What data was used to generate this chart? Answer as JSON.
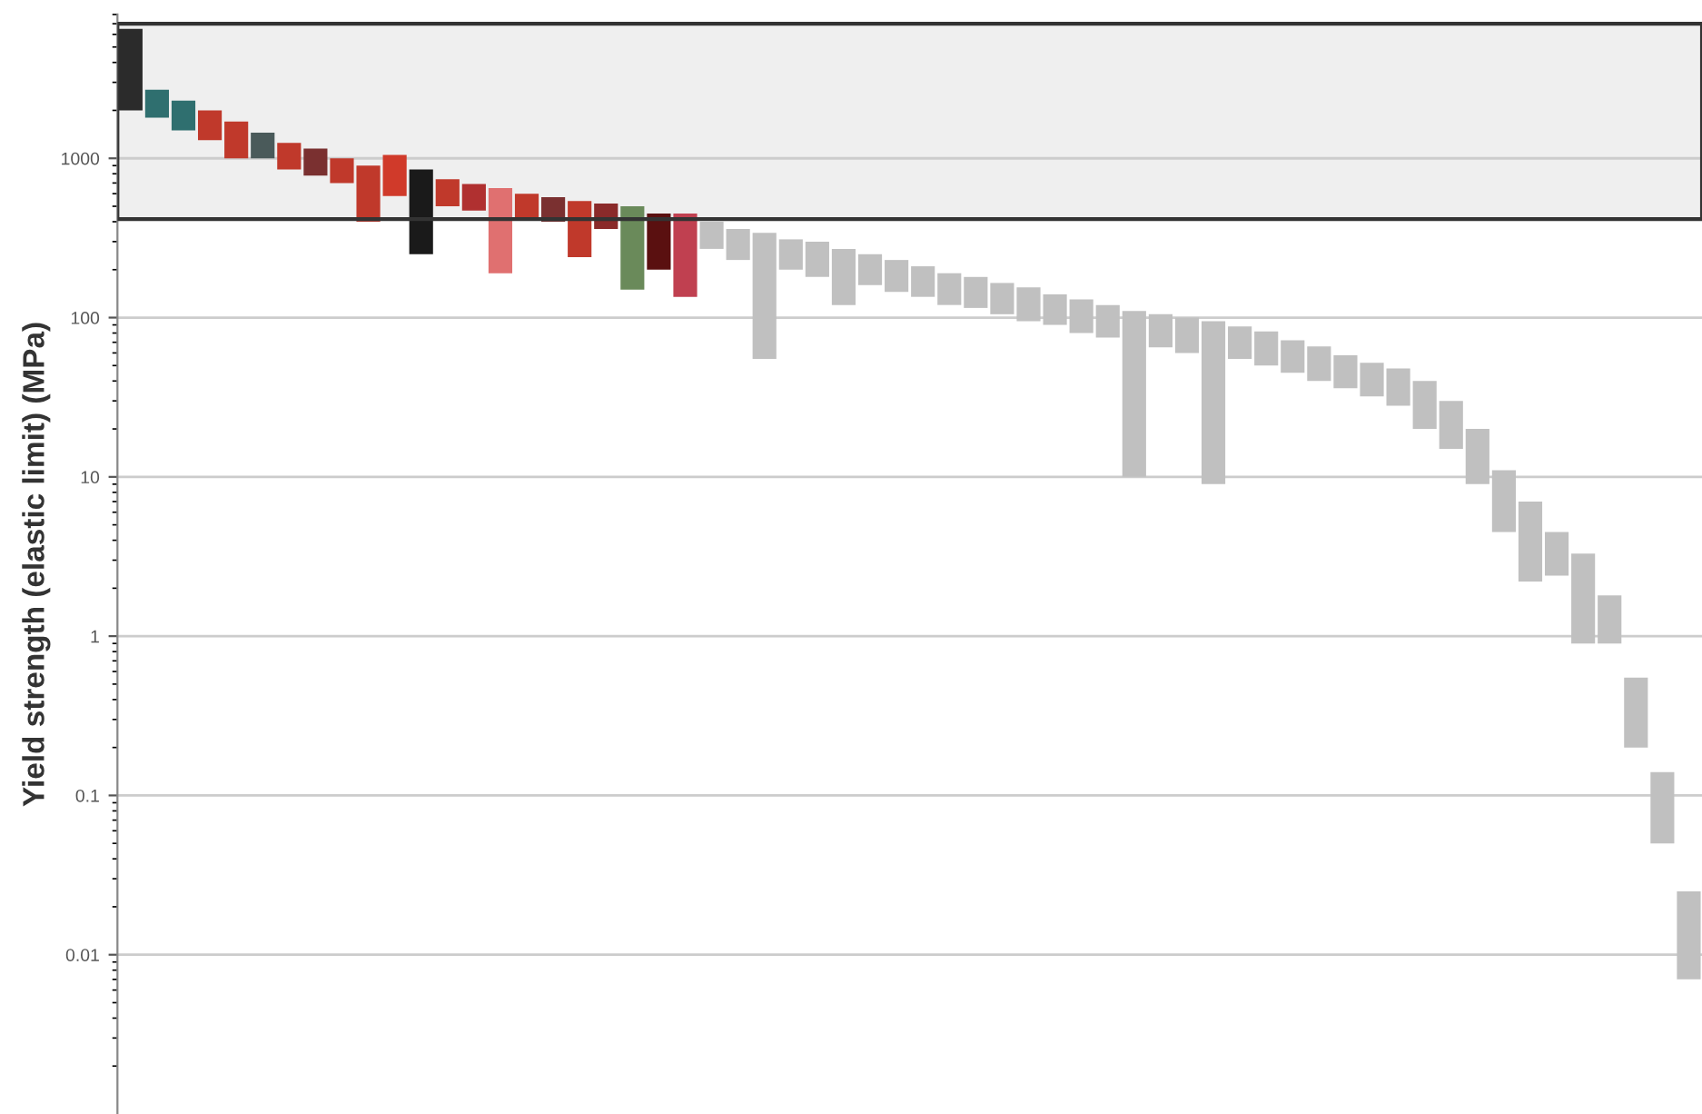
{
  "chart_data": {
    "type": "bar",
    "ylabel": "Yield strength (elastic limit) (MPa)",
    "categories": [
      null,
      null,
      null,
      null,
      null,
      null,
      null,
      null,
      null,
      null,
      null,
      null,
      null,
      null,
      null,
      null,
      null,
      null,
      null,
      null,
      null,
      null,
      null,
      null,
      null,
      null,
      null,
      null,
      null,
      null,
      null,
      null,
      null,
      null,
      null,
      null,
      null,
      null,
      null,
      null,
      null,
      null,
      null,
      null,
      null,
      null,
      null,
      null,
      null,
      null,
      null,
      null,
      null,
      null,
      null,
      null,
      null,
      null,
      null,
      null
    ],
    "base": [
      2000,
      1800,
      1500,
      1300,
      1000,
      1000,
      850,
      780,
      700,
      400,
      580,
      250,
      500,
      470,
      190,
      420,
      400,
      240,
      360,
      150,
      200,
      135,
      270,
      230,
      55,
      200,
      180,
      120,
      160,
      145,
      135,
      120,
      115,
      105,
      95,
      90,
      80,
      75,
      10,
      65,
      60,
      9,
      55,
      50,
      45,
      40,
      36,
      32,
      28,
      20,
      15,
      9,
      4.5,
      2.2,
      2.4,
      0.9,
      0.9,
      0.2,
      0.05,
      0.007
    ],
    "values": [
      4500,
      900,
      800,
      700,
      700,
      450,
      400,
      370,
      300,
      500,
      470,
      600,
      240,
      220,
      460,
      180,
      170,
      300,
      160,
      350,
      250,
      315,
      130,
      130,
      285,
      110,
      120,
      150,
      90,
      85,
      75,
      70,
      65,
      60,
      60,
      50,
      50,
      45,
      100,
      40,
      40,
      86,
      33,
      32,
      27,
      26,
      22,
      20,
      20,
      20,
      15,
      11,
      6.5,
      4.8,
      2.1,
      2.4,
      0.9,
      0.35,
      0.09,
      0.018
    ],
    "colors": [
      "#2b2b2b",
      "#2f6f6f",
      "#2f6f6f",
      "#c0392b",
      "#c0392b",
      "#4a5a5a",
      "#c0392b",
      "#7a3030",
      "#c0392b",
      "#c0392b",
      "#d03a2a",
      "#1a1a1a",
      "#c0392b",
      "#b03030",
      "#e07070",
      "#c0392b",
      "#7a3030",
      "#c0392b",
      "#8a2a2a",
      "#6a8a5a",
      "#5a1010",
      "#c04050",
      "#c0c0c0",
      "#c0c0c0",
      "#c0c0c0",
      "#c0c0c0",
      "#c0c0c0",
      "#c0c0c0",
      "#c0c0c0",
      "#c0c0c0",
      "#c0c0c0",
      "#c0c0c0",
      "#c0c0c0",
      "#c0c0c0",
      "#c0c0c0",
      "#c0c0c0",
      "#c0c0c0",
      "#c0c0c0",
      "#c0c0c0",
      "#c0c0c0",
      "#c0c0c0",
      "#c0c0c0",
      "#c0c0c0",
      "#c0c0c0",
      "#c0c0c0",
      "#c0c0c0",
      "#c0c0c0",
      "#c0c0c0",
      "#c0c0c0",
      "#c0c0c0",
      "#c0c0c0",
      "#c0c0c0",
      "#c0c0c0",
      "#c0c0c0",
      "#c0c0c0",
      "#c0c0c0",
      "#c0c0c0",
      "#c0c0c0",
      "#c0c0c0",
      "#c0c0c0"
    ],
    "log": "y",
    "ylim": [
      0.001,
      8000
    ],
    "yticks": [
      0.01,
      0.1,
      1,
      10,
      100,
      1000
    ],
    "grid": "y",
    "tick_labels": "y",
    "bands": [
      {
        "axis": "y",
        "from": 415,
        "to": 7000,
        "color": "#333333"
      }
    ]
  }
}
